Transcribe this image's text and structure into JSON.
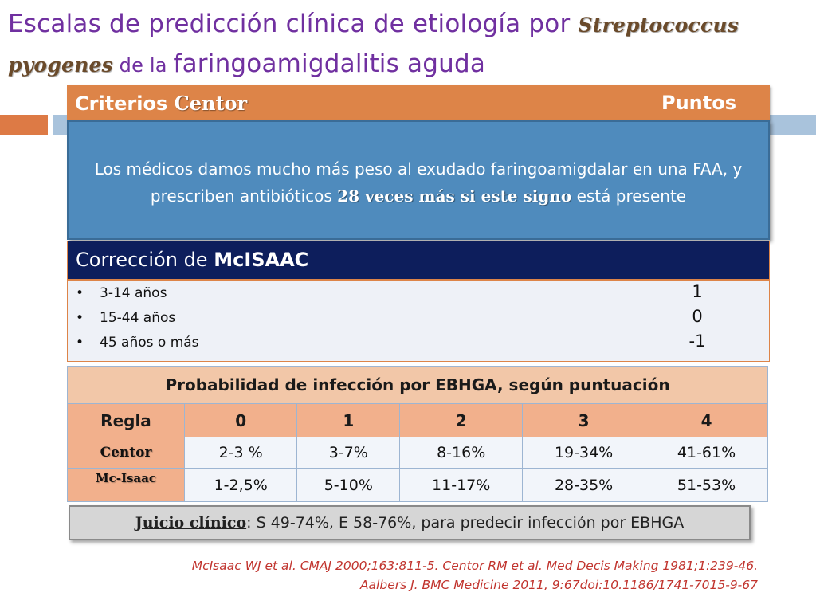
{
  "title": {
    "part1": "Escalas de predicción clínica  de etiología por ",
    "organism_genus": "Streptococcus",
    "organism_species": "pyogenes",
    "part2": " de la ",
    "part3": "faringoamigdalitis aguda"
  },
  "centor": {
    "label_prefix": "Criterios ",
    "label_bold": "Centor",
    "points_label": "Puntos"
  },
  "callout": {
    "text_before": "Los médicos damos mucho más peso al exudado faringoamigdalar en una FAA, y prescriben antibióticos ",
    "text_bold": "28 veces más si este signo",
    "text_after": " está presente"
  },
  "mcisaac": {
    "title_prefix": "Corrección  de ",
    "title_bold": "McISAAC",
    "items": [
      {
        "bullet": "•",
        "label": "3-14 años",
        "value": "1"
      },
      {
        "bullet": "•",
        "label": "15-44 años",
        "value": "0"
      },
      {
        "bullet": "•",
        "label": "45 años o más",
        "value": "-1"
      }
    ]
  },
  "probability_table": {
    "title": "Probabilidad de infección por EBHGA, según puntuación",
    "headers": [
      "Regla",
      "0",
      "1",
      "2",
      "3",
      "4"
    ],
    "rows": [
      {
        "rule": "Centor",
        "values": [
          "2-3 %",
          "3-7%",
          "8-16%",
          "19-34%",
          "41-61%"
        ]
      },
      {
        "rule": "Mc-Isaac",
        "values": [
          "1-2,5%",
          "5-10%",
          "11-17%",
          "28-35%",
          "51-53%"
        ]
      }
    ]
  },
  "juicio": {
    "label": "Juicio clínico",
    "sep": ":",
    "text": " S 49-74%, E 58-76%, para predecir infección por EBHGA"
  },
  "references": {
    "line1": "McIsaac WJ et al. CMAJ 2000;163:811-5. Centor RM et al. Med Decis Making 1981;1:239-46.",
    "line2": "Aalbers J. BMC Medicine 2011, 9:67doi:10.1186/1741-7015-9-67"
  },
  "colors": {
    "title": "#7030a0",
    "orange": "#dd8448",
    "blue_callout": "#4f8bbd",
    "navy": "#0d1e5c",
    "reference_red": "#c1342e"
  }
}
